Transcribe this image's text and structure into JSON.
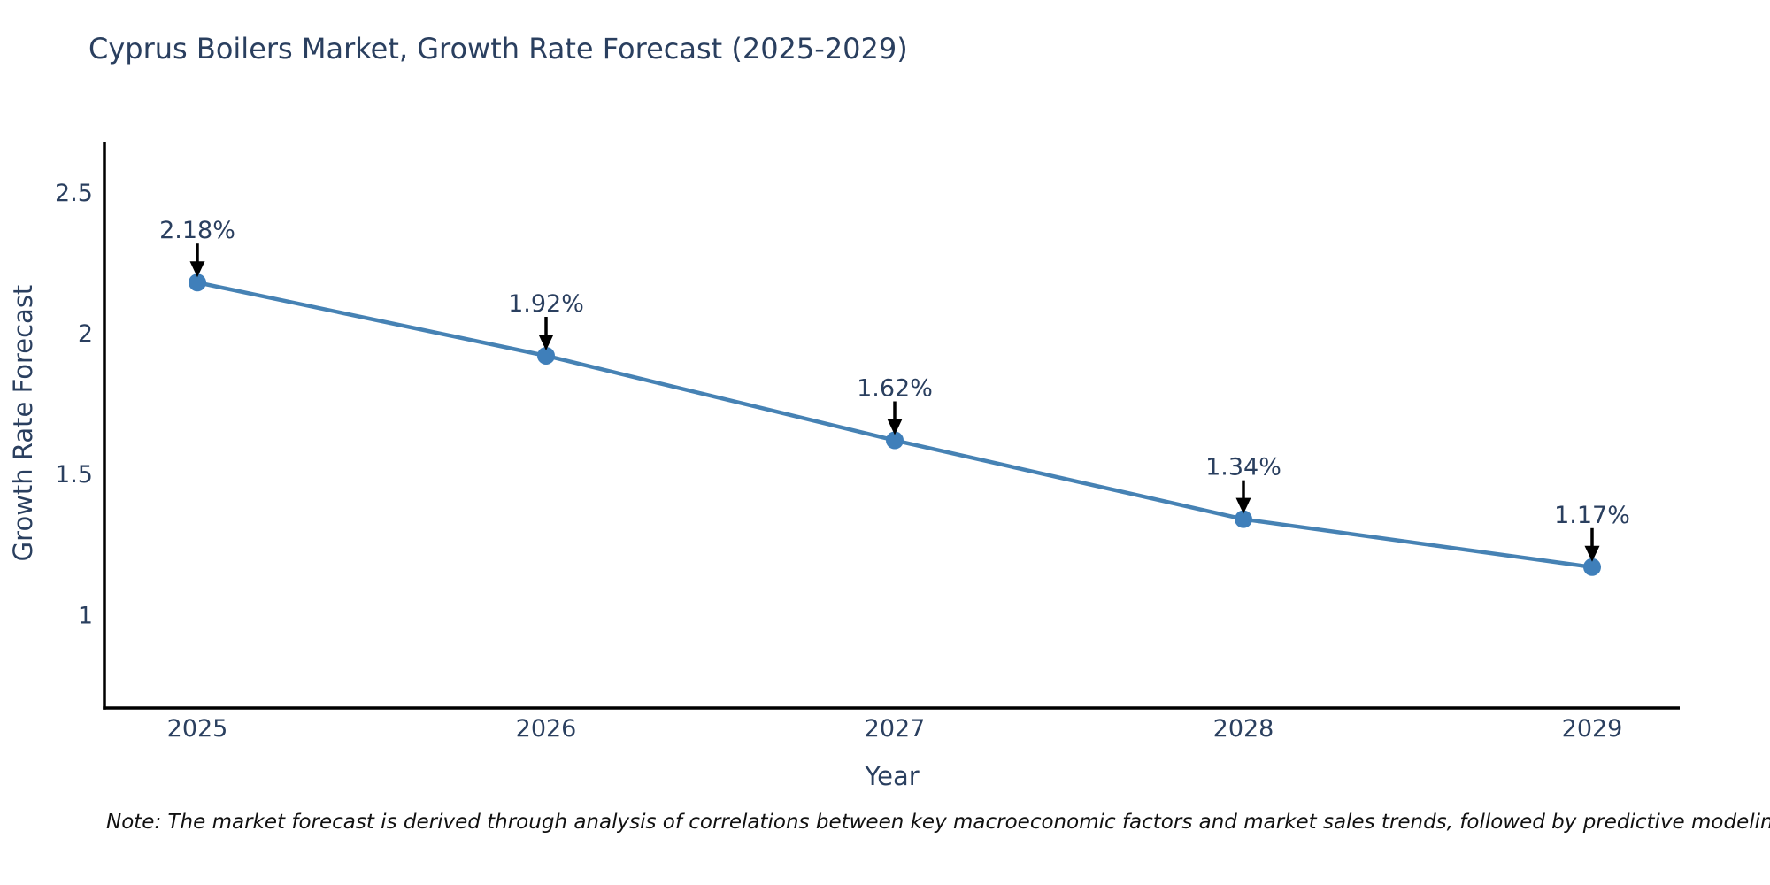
{
  "chart_data": {
    "type": "line",
    "title": "Cyprus Boilers Market, Growth Rate Forecast (2025-2029)",
    "xlabel": "Year",
    "ylabel": "Growth Rate Forecast",
    "categories": [
      "2025",
      "2026",
      "2027",
      "2028",
      "2029"
    ],
    "series": [
      {
        "name": "Growth Rate Forecast",
        "values": [
          2.18,
          1.92,
          1.62,
          1.34,
          1.17
        ],
        "point_labels": [
          "2.18%",
          "1.92%",
          "1.62%",
          "1.34%",
          "1.17%"
        ]
      }
    ],
    "yticks": [
      1,
      1.5,
      2,
      2.5
    ],
    "ylim": [
      0.67,
      2.68
    ],
    "grid": false,
    "legend": "none",
    "colors": {
      "line": "#4682b4",
      "marker": "#3f7fba",
      "axis": "#000000",
      "text": "#2a3f5f",
      "annotation_arrow": "#000000",
      "note_text": "#111111",
      "background": "#ffffff"
    },
    "note": "Note: The market forecast is derived through analysis of correlations between key macroeconomic factors and market sales trends, followed by predictive modeling to project future sales"
  }
}
